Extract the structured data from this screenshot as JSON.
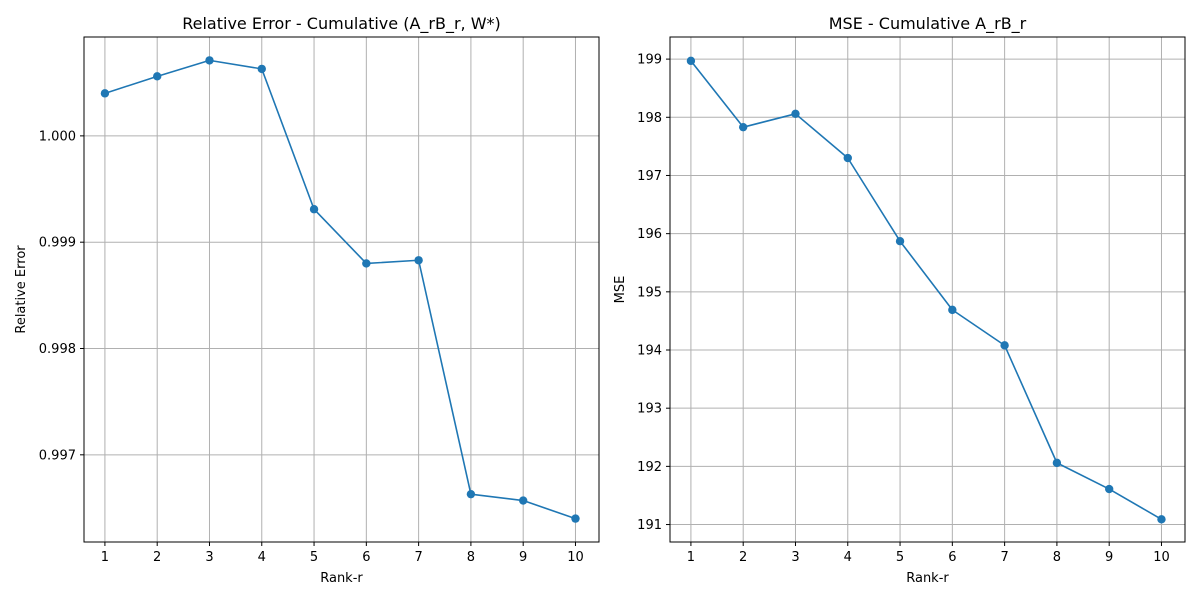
{
  "figure": {
    "background": "#ffffff",
    "grid_color": "#b0b0b0",
    "line_color": "#1f77b4"
  },
  "chart_data": [
    {
      "type": "line",
      "title": "Relative Error - Cumulative (A_rB_r, W*)",
      "xlabel": "Rank-r",
      "ylabel": "Relative Error",
      "x": [
        1,
        2,
        3,
        4,
        5,
        6,
        7,
        8,
        9,
        10
      ],
      "x_ticks": [
        "1",
        "2",
        "3",
        "4",
        "5",
        "6",
        "7",
        "8",
        "9",
        "10"
      ],
      "xlim": [
        0.6,
        10.45
      ],
      "y_ticks": [
        0.997,
        0.998,
        0.999,
        1.0
      ],
      "y_tick_labels": [
        "0.997",
        "0.998",
        "0.999",
        "1.000"
      ],
      "ylim": [
        0.99618,
        1.00093
      ],
      "grid": true,
      "marker": "circle",
      "series": [
        {
          "color": "#1f77b4",
          "values": [
            1.0004,
            1.00056,
            1.00071,
            1.00063,
            0.99931,
            0.9988,
            0.99883,
            0.99663,
            0.99657,
            0.9964
          ]
        }
      ]
    },
    {
      "type": "line",
      "title": "MSE - Cumulative A_rB_r",
      "xlabel": "Rank-r",
      "ylabel": "MSE",
      "x": [
        1,
        2,
        3,
        4,
        5,
        6,
        7,
        8,
        9,
        10
      ],
      "x_ticks": [
        "1",
        "2",
        "3",
        "4",
        "5",
        "6",
        "7",
        "8",
        "9",
        "10"
      ],
      "xlim": [
        0.6,
        10.45
      ],
      "y_ticks": [
        191,
        192,
        193,
        194,
        195,
        196,
        197,
        198,
        199
      ],
      "y_tick_labels": [
        "191",
        "192",
        "193",
        "194",
        "195",
        "196",
        "197",
        "198",
        "199"
      ],
      "ylim": [
        190.7,
        199.38
      ],
      "grid": true,
      "marker": "circle",
      "series": [
        {
          "color": "#1f77b4",
          "values": [
            198.97,
            197.83,
            198.06,
            197.3,
            195.87,
            194.69,
            194.08,
            192.06,
            191.61,
            191.09
          ]
        }
      ]
    }
  ]
}
